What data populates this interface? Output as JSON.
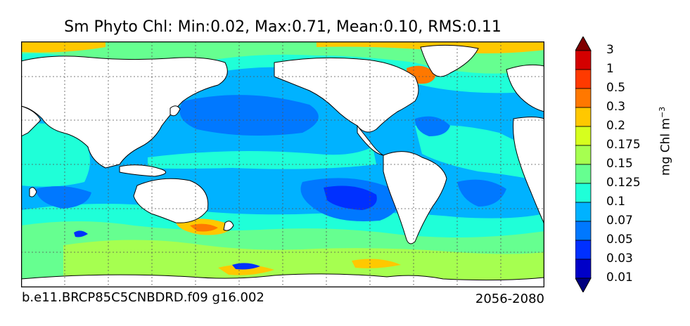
{
  "title": "Sm Phyto Chl: Min:0.02, Max:0.71, Mean:0.10, RMS:0.11",
  "footer": {
    "case_name": "b.e11.BRCP85C5CNBDRD.f09 g16.002",
    "period": "2056-2080"
  },
  "colorbar": {
    "unit": "mg Chl m",
    "unit_exponent": "−3",
    "levels": [
      "0.01",
      "0.03",
      "0.05",
      "0.07",
      "0.1",
      "0.125",
      "0.15",
      "0.175",
      "0.2",
      "0.3",
      "0.5",
      "1",
      "3"
    ],
    "colors": [
      "#00007f",
      "#0000c8",
      "#0030ff",
      "#0078ff",
      "#00b2ff",
      "#1fffd8",
      "#66ff90",
      "#a6ff50",
      "#d6ff1e",
      "#ffc800",
      "#ff7800",
      "#ff3a00",
      "#d40000",
      "#7f0000"
    ]
  },
  "map_colors": {
    "land": "#ffffff",
    "coast": "#000000",
    "grid": "#555555"
  }
}
